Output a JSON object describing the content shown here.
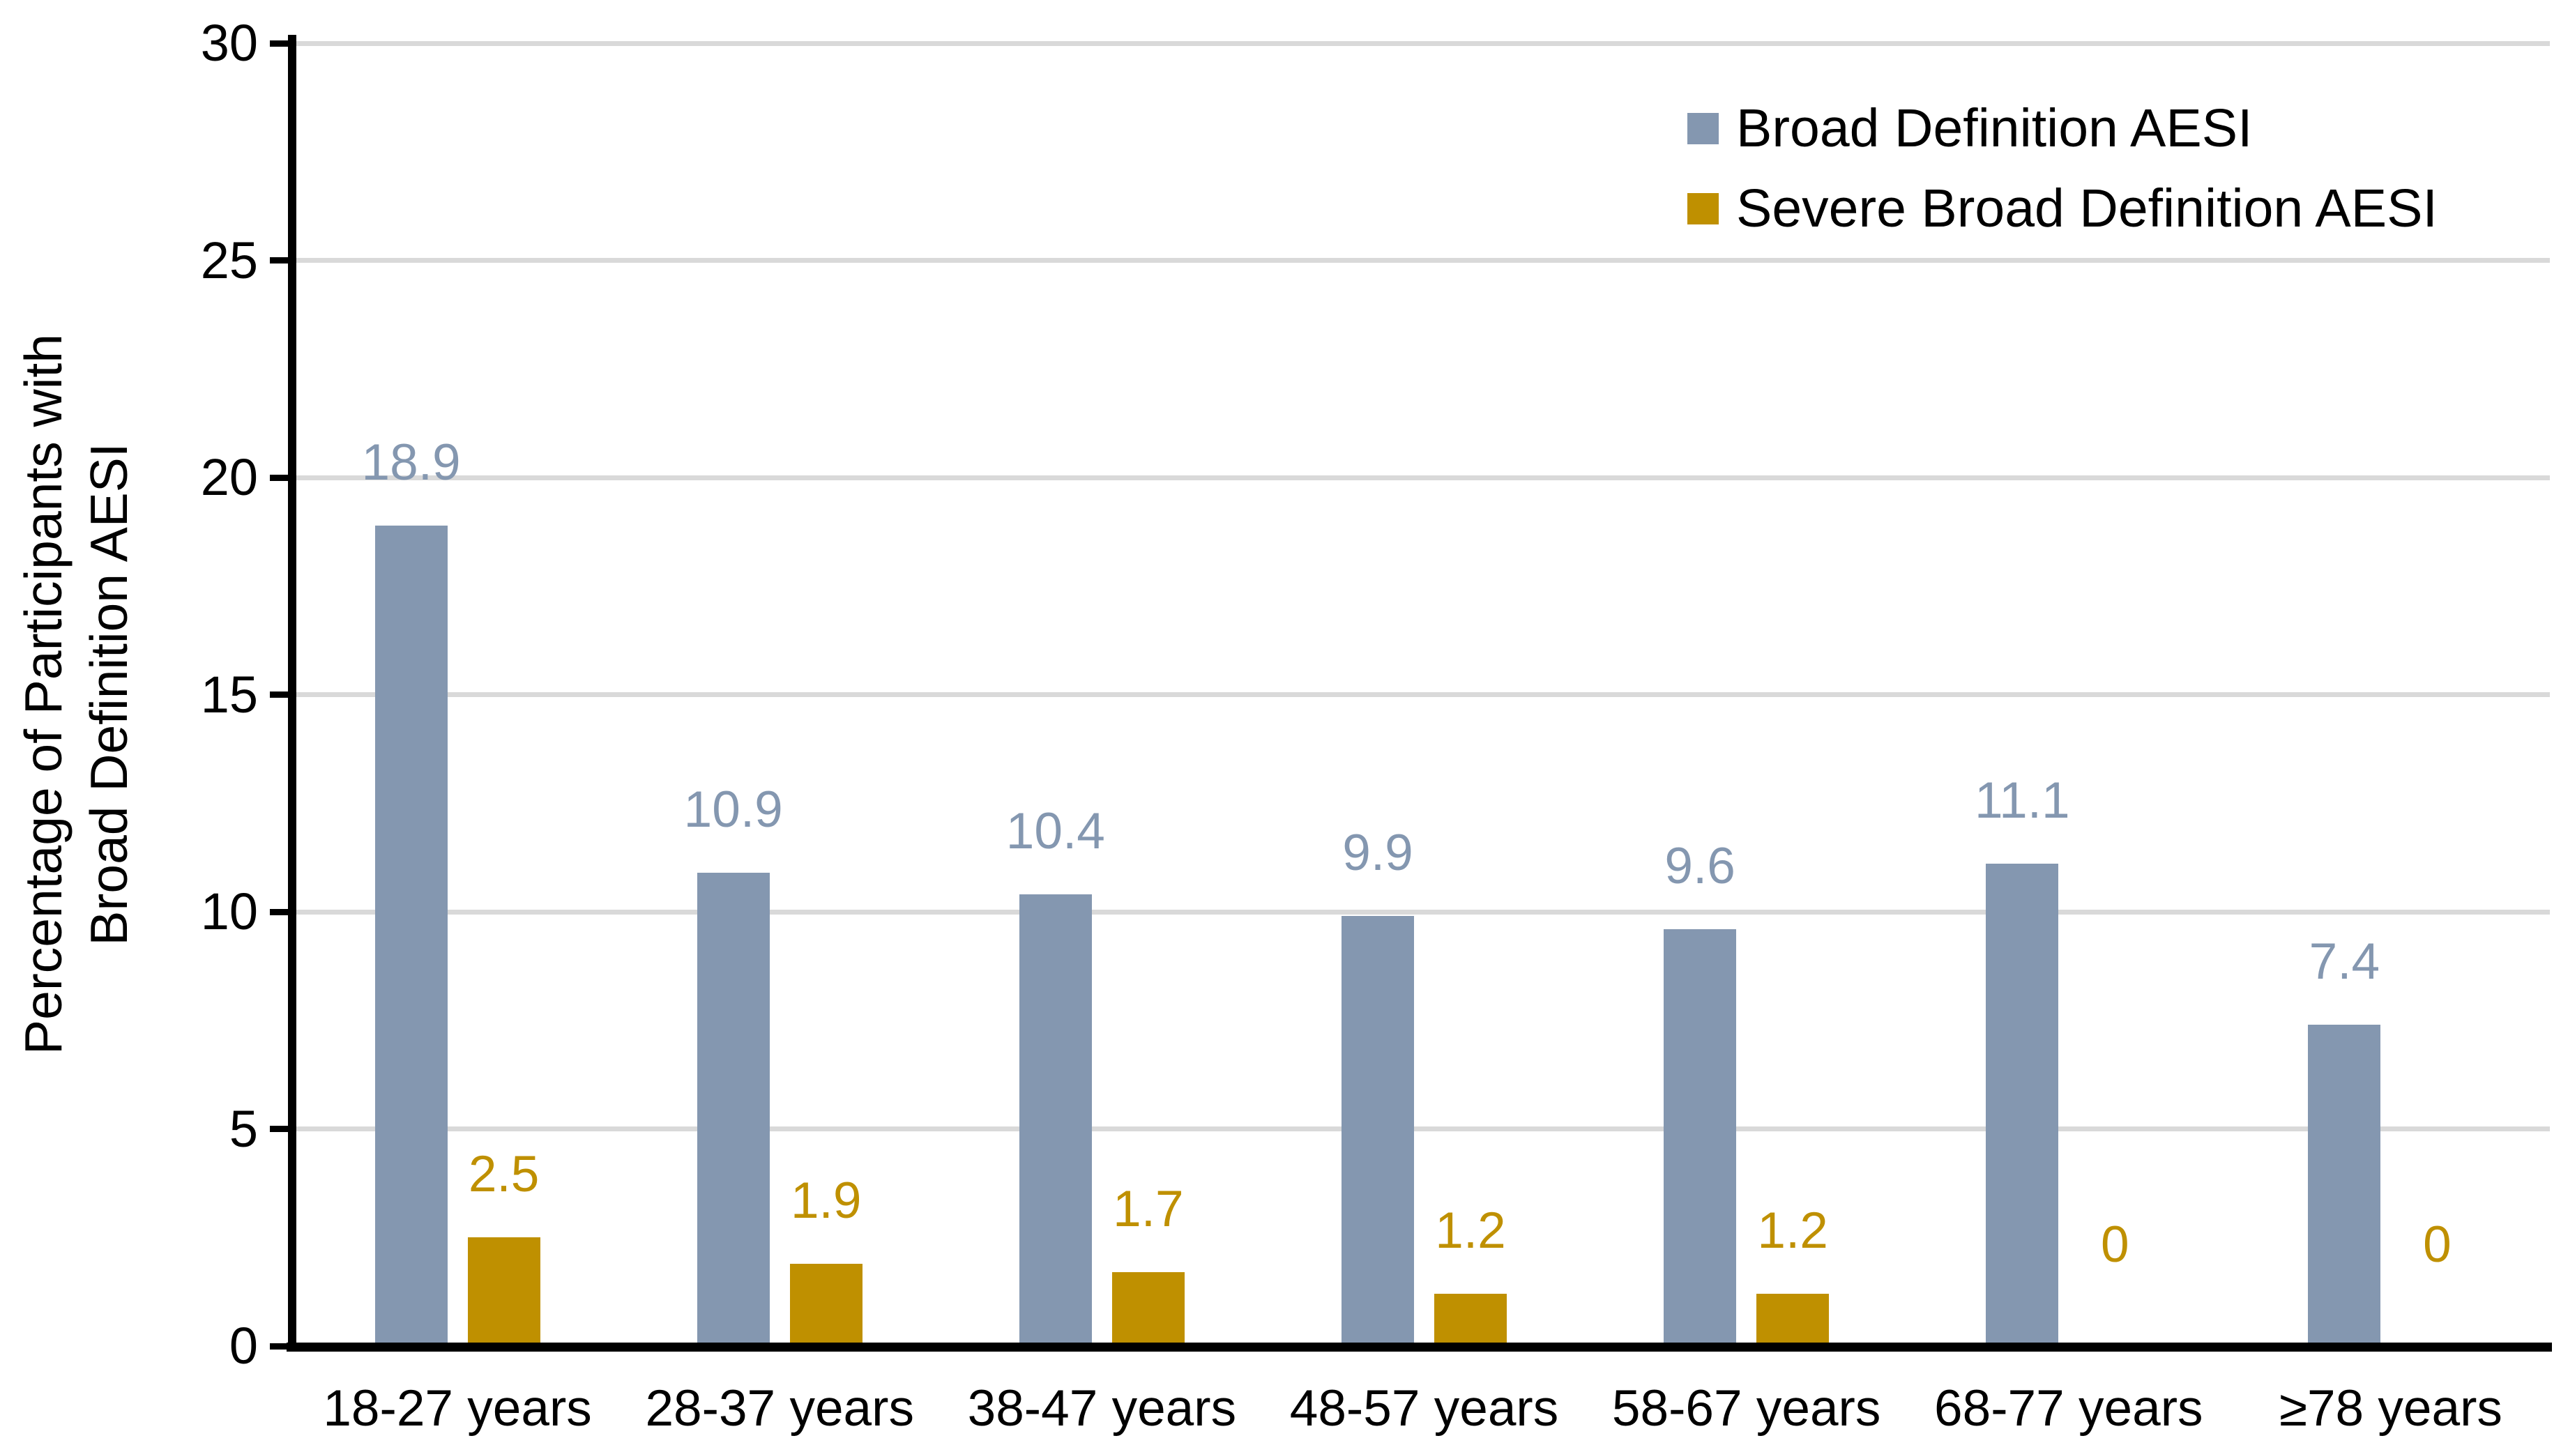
{
  "colors": {
    "broad_series": "#8497B0",
    "severe_series": "#BF9000",
    "gridline": "#D9D9D9",
    "axis": "#000000"
  },
  "chart_data": {
    "type": "bar",
    "categories": [
      "18-27 years",
      "28-37 years",
      "38-47 years",
      "48-57 years",
      "58-67 years",
      "68-77 years",
      "≥78 years"
    ],
    "series": [
      {
        "name": "Broad Definition AESI",
        "color": "#8497B0",
        "values": [
          18.9,
          10.9,
          10.4,
          9.9,
          9.6,
          11.1,
          7.4
        ],
        "labels": [
          "18.9",
          "10.9",
          "10.4",
          "9.9",
          "9.6",
          "11.1",
          "7.4"
        ]
      },
      {
        "name": "Severe Broad Definition AESI",
        "color": "#BF9000",
        "values": [
          2.5,
          1.9,
          1.7,
          1.2,
          1.2,
          0,
          0
        ],
        "labels": [
          "2.5",
          "1.9",
          "1.7",
          "1.2",
          "1.2",
          "0",
          "0"
        ]
      }
    ],
    "ylabel_line1": "Percentage of Participants with",
    "ylabel_line2": "Broad Definition AESI",
    "ylim": [
      0,
      30
    ],
    "yticks": [
      0,
      5,
      10,
      15,
      20,
      25,
      30
    ],
    "ytick_labels": [
      "0",
      "5",
      "10",
      "15",
      "20",
      "25",
      "30"
    ],
    "grid": true,
    "legend_position": "top-right"
  }
}
